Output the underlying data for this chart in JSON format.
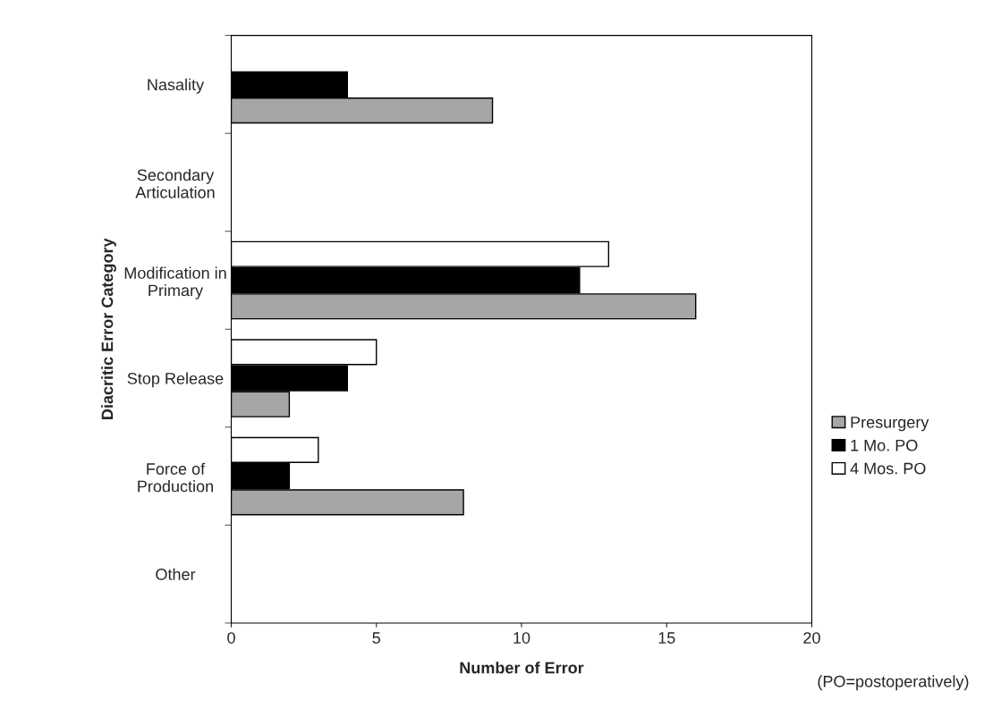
{
  "chart_data": {
    "type": "bar",
    "orientation": "horizontal",
    "xlabel": "Number of Error",
    "ylabel": "Diacritic Error Category",
    "categories": [
      "Nasality",
      "Secondary\nArticulation",
      "Modification in\nPrimary",
      "Stop Release",
      "Force of\nProduction",
      "Other"
    ],
    "series": [
      {
        "name": "Presurgery",
        "color": "#a6a6a6",
        "values": [
          9,
          0,
          16,
          2,
          8,
          0
        ]
      },
      {
        "name": "1 Mo. PO",
        "color": "#000000",
        "values": [
          4,
          0,
          12,
          4,
          2,
          0
        ]
      },
      {
        "name": "4 Mos. PO",
        "color": "#ffffff",
        "values": [
          0,
          0,
          13,
          5,
          3,
          0
        ]
      }
    ],
    "xlim": [
      0,
      20
    ],
    "xticks": [
      0,
      5,
      10,
      15,
      20
    ],
    "legend": "right",
    "grid": false,
    "annotations": [
      "(PO=postoperatively)"
    ]
  }
}
